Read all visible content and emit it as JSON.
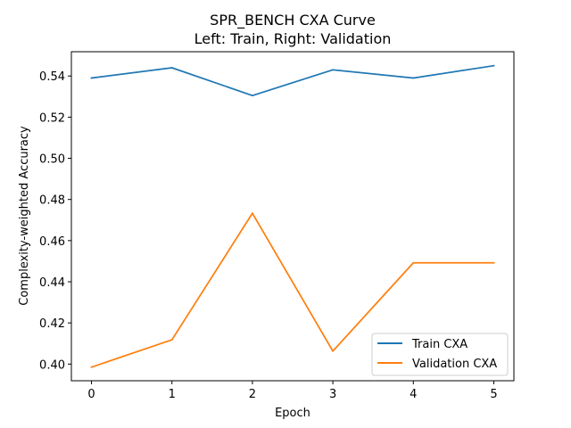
{
  "chart_data": {
    "type": "line",
    "title": "SPR_BENCH CXA Curve",
    "subtitle": "Left: Train, Right: Validation",
    "xlabel": "Epoch",
    "ylabel": "Complexity-weighted Accuracy",
    "x": [
      0,
      1,
      2,
      3,
      4,
      5
    ],
    "xlim": [
      -0.25,
      5.25
    ],
    "ylim": [
      0.3919,
      0.5518
    ],
    "xticks": [
      "0",
      "1",
      "2",
      "3",
      "4",
      "5"
    ],
    "yticks": [
      "0.40",
      "0.42",
      "0.44",
      "0.46",
      "0.48",
      "0.50",
      "0.52",
      "0.54"
    ],
    "grid": false,
    "legend_position": "lower-right",
    "series": [
      {
        "name": "Train CXA",
        "color": "#1f77b4",
        "values": [
          0.539,
          0.544,
          0.5305,
          0.543,
          0.539,
          0.545
        ]
      },
      {
        "name": "Validation CXA",
        "color": "#ff7f0e",
        "values": [
          0.3985,
          0.4118,
          0.4733,
          0.4063,
          0.4492,
          0.4492
        ]
      }
    ]
  }
}
